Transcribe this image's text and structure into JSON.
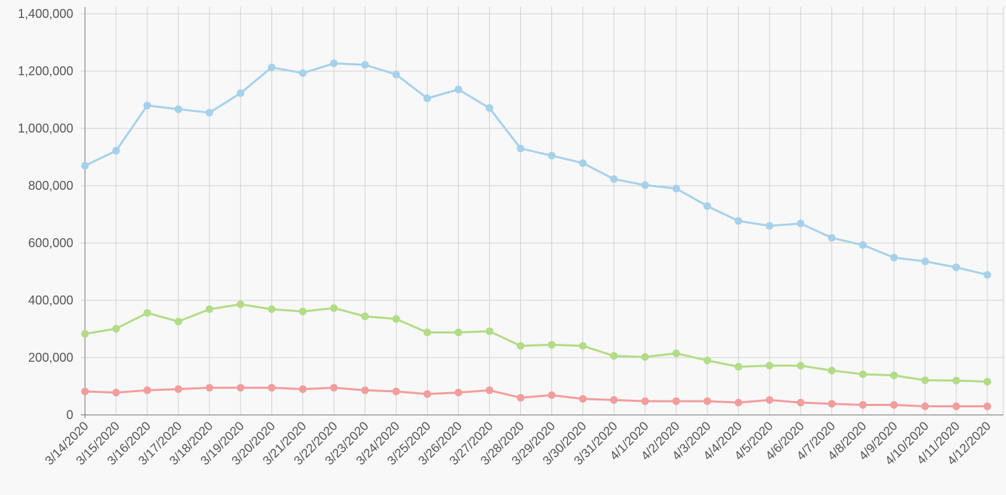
{
  "chart_data": {
    "type": "line",
    "title": "",
    "xlabel": "",
    "ylabel": "",
    "ylim": [
      0,
      1400000
    ],
    "yticks": [
      0,
      200000,
      400000,
      600000,
      800000,
      1000000,
      1200000,
      1400000
    ],
    "ytick_labels": [
      "0",
      "200,000",
      "400,000",
      "600,000",
      "800,000",
      "1,000,000",
      "1,200,000",
      "1,400,000"
    ],
    "grid": true,
    "legend": "none",
    "x": [
      "3/14/2020",
      "3/15/2020",
      "3/16/2020",
      "3/17/2020",
      "3/18/2020",
      "3/19/2020",
      "3/20/2020",
      "3/21/2020",
      "3/22/2020",
      "3/23/2020",
      "3/24/2020",
      "3/25/2020",
      "3/26/2020",
      "3/27/2020",
      "3/28/2020",
      "3/29/2020",
      "3/30/2020",
      "3/31/2020",
      "4/1/2020",
      "4/2/2020",
      "4/3/2020",
      "4/4/2020",
      "4/5/2020",
      "4/6/2020",
      "4/7/2020",
      "4/8/2020",
      "4/9/2020",
      "4/10/2020",
      "4/11/2020",
      "4/12/2020"
    ],
    "series": [
      {
        "color": "#a6d1ea",
        "values": [
          870000,
          922000,
          1080000,
          1067000,
          1055000,
          1123000,
          1213000,
          1193000,
          1227000,
          1222000,
          1188000,
          1105000,
          1136000,
          1071000,
          930000,
          905000,
          879000,
          823000,
          802000,
          790000,
          729000,
          677000,
          660000,
          668000,
          618000,
          593000,
          549000,
          536000,
          515000,
          489000
        ]
      },
      {
        "color": "#b2dc86",
        "values": [
          283000,
          301000,
          356000,
          326000,
          369000,
          386000,
          369000,
          361000,
          373000,
          344000,
          335000,
          288000,
          288000,
          292000,
          241000,
          245000,
          241000,
          206000,
          202000,
          215000,
          190000,
          168000,
          172000,
          172000,
          155000,
          142000,
          138000,
          121000,
          120000,
          116000
        ]
      },
      {
        "color": "#f19d9d",
        "values": [
          82000,
          78000,
          86000,
          90000,
          95000,
          95000,
          95000,
          90000,
          95000,
          86000,
          82000,
          73000,
          78000,
          86000,
          60000,
          69000,
          56000,
          52000,
          48000,
          48000,
          48000,
          43000,
          52000,
          43000,
          39000,
          35000,
          35000,
          30000,
          30000,
          30000
        ]
      }
    ]
  }
}
